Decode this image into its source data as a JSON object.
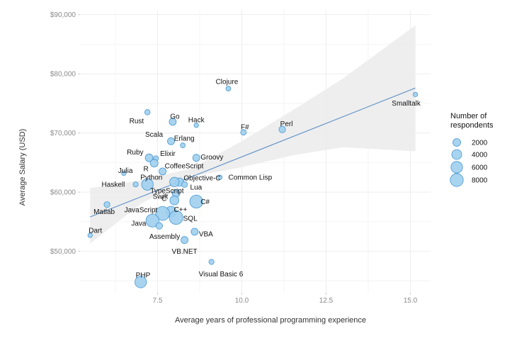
{
  "chart_data": {
    "type": "scatter",
    "xlabel": "Average years of professional programming experience",
    "ylabel": "Average Salary (USD)",
    "xlim": [
      5.2,
      15.6
    ],
    "ylim": [
      43000,
      90800
    ],
    "x_ticks": [
      7.5,
      10.0,
      12.5,
      15.0
    ],
    "x_tick_labels": [
      "7.5",
      "10.0",
      "12.5",
      "15.0"
    ],
    "y_ticks": [
      50000,
      60000,
      70000,
      80000,
      90000
    ],
    "y_tick_labels": [
      "$50,000",
      "$60,000",
      "$70,000",
      "$80,000",
      "$90,000"
    ],
    "grid": true,
    "colors": {
      "point_fill": "#9ecfee",
      "point_stroke": "#4a98d0",
      "trend_line": "#5b8fc7",
      "ribbon": "#ebebeb",
      "grid": "#eeeeee"
    },
    "trend": {
      "x": [
        5.5,
        15.15
      ],
      "y": [
        55800,
        77600
      ]
    },
    "ribbon": {
      "x": [
        5.5,
        7.0,
        8.5,
        10.0,
        11.5,
        13.0,
        15.15
      ],
      "upper": [
        60700,
        62000,
        64000,
        68600,
        73800,
        79200,
        88200
      ],
      "lower": [
        51300,
        58000,
        62600,
        64200,
        66200,
        67600,
        66900
      ]
    },
    "legend": {
      "title_lines": [
        "Number of",
        "respondents"
      ],
      "position": "right",
      "sizes": [
        2000,
        4000,
        6000,
        8000
      ],
      "labels": [
        "2000",
        "4000",
        "6000",
        "8000"
      ]
    },
    "points": [
      {
        "name": "Clojure",
        "x": 9.6,
        "y": 77500,
        "n": 400
      },
      {
        "name": "Smalltalk",
        "x": 15.15,
        "y": 76500,
        "n": 300
      },
      {
        "name": "Rust",
        "x": 7.2,
        "y": 73500,
        "n": 600
      },
      {
        "name": "Go",
        "x": 7.95,
        "y": 71900,
        "n": 1500
      },
      {
        "name": "Hack",
        "x": 8.65,
        "y": 71300,
        "n": 300
      },
      {
        "name": "F#",
        "x": 10.05,
        "y": 70100,
        "n": 700
      },
      {
        "name": "Perl",
        "x": 11.2,
        "y": 70600,
        "n": 1200
      },
      {
        "name": "Scala",
        "x": 7.9,
        "y": 68600,
        "n": 1500
      },
      {
        "name": "Erlang",
        "x": 8.25,
        "y": 67900,
        "n": 400
      },
      {
        "name": "Groovy",
        "x": 8.65,
        "y": 65800,
        "n": 1500
      },
      {
        "name": "Ruby",
        "x": 7.25,
        "y": 65800,
        "n": 2000
      },
      {
        "name": "Elixir",
        "x": 7.45,
        "y": 65700,
        "n": 500
      },
      {
        "name": "R",
        "x": 7.4,
        "y": 64900,
        "n": 2000
      },
      {
        "name": "CoffeeScript",
        "x": 7.65,
        "y": 63500,
        "n": 1500
      },
      {
        "name": "Julia",
        "x": 6.5,
        "y": 63200,
        "n": 300
      },
      {
        "name": "Common Lisp",
        "x": 9.35,
        "y": 62500,
        "n": 300
      },
      {
        "name": "Objective-C",
        "x": 8.15,
        "y": 61700,
        "n": 2500
      },
      {
        "name": "Python",
        "x": 7.2,
        "y": 61300,
        "n": 6000
      },
      {
        "name": "Haskell",
        "x": 6.85,
        "y": 61300,
        "n": 500
      },
      {
        "name": "TypeScript",
        "x": 8.0,
        "y": 61700,
        "n": 3500
      },
      {
        "name": "Lua",
        "x": 8.3,
        "y": 61300,
        "n": 800
      },
      {
        "name": "Swift",
        "x": 8.05,
        "y": 59800,
        "n": 2000
      },
      {
        "name": "C#",
        "x": 8.65,
        "y": 58400,
        "n": 8000
      },
      {
        "name": "C",
        "x": 8.0,
        "y": 58600,
        "n": 3000
      },
      {
        "name": "Matlab",
        "x": 6.0,
        "y": 57900,
        "n": 800
      },
      {
        "name": "C++",
        "x": 7.9,
        "y": 56700,
        "n": 5000
      },
      {
        "name": "JavaScript",
        "x": 7.65,
        "y": 56400,
        "n": 9500
      },
      {
        "name": "SQL",
        "x": 8.05,
        "y": 55700,
        "n": 9000
      },
      {
        "name": "Java",
        "x": 7.35,
        "y": 55200,
        "n": 8000
      },
      {
        "name": "Assembly",
        "x": 7.55,
        "y": 54300,
        "n": 1200
      },
      {
        "name": "Dart",
        "x": 5.5,
        "y": 52700,
        "n": 300
      },
      {
        "name": "VBA",
        "x": 8.6,
        "y": 53300,
        "n": 1500
      },
      {
        "name": "VB.NET",
        "x": 8.3,
        "y": 51900,
        "n": 1500
      },
      {
        "name": "Visual Basic 6",
        "x": 9.1,
        "y": 48200,
        "n": 500
      },
      {
        "name": "PHP",
        "x": 7.0,
        "y": 44800,
        "n": 6000
      }
    ]
  }
}
